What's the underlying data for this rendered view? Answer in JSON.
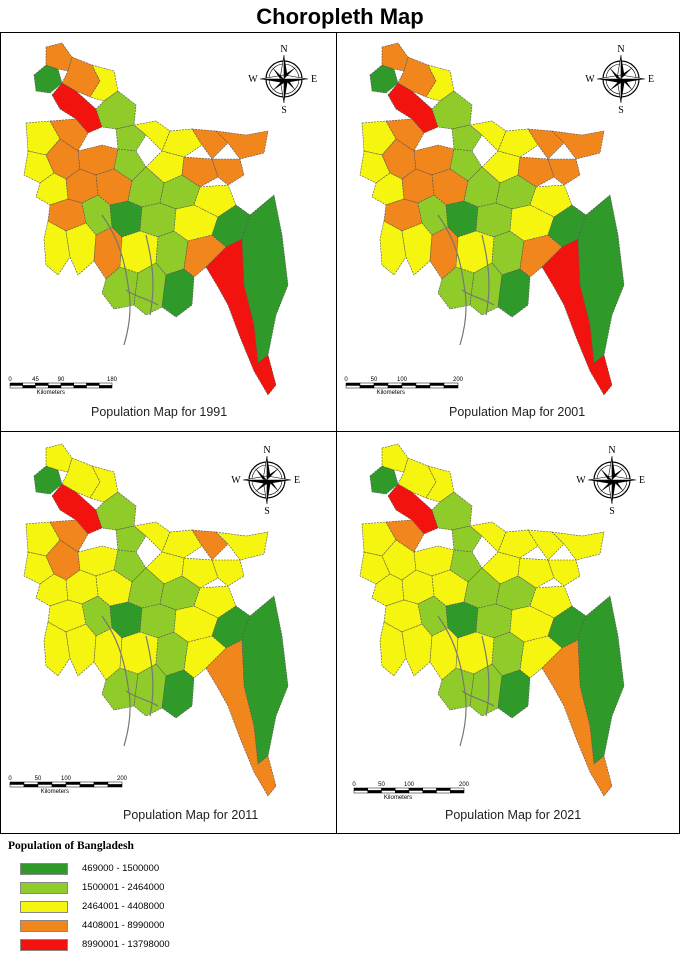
{
  "title": "Choropleth Map",
  "colors": {
    "c1": "#2f9a2a",
    "c2": "#8fcc2a",
    "c3": "#f5f50f",
    "c4": "#f0861c",
    "c5": "#f2130f",
    "border": "#555555"
  },
  "legend": {
    "title": "Population of Bangladesh",
    "classes": [
      {
        "range": "469000 - 1500000",
        "color": "#2f9a2a"
      },
      {
        "range": "1500001 - 2464000",
        "color": "#8fcc2a"
      },
      {
        "range": "2464001 - 4408000",
        "color": "#f5f50f"
      },
      {
        "range": "4408001 - 8990000",
        "color": "#f0861c"
      },
      {
        "range": "8990001 - 13798000",
        "color": "#f2130f"
      }
    ]
  },
  "compass": {
    "n": "N",
    "s": "S",
    "e": "E",
    "w": "W"
  },
  "panels": [
    {
      "caption": "Population Map for 1991",
      "scale_ticks": [
        "0",
        "45",
        "90",
        "180"
      ],
      "scale_unit": "Kilometers",
      "classes": [
        1,
        4,
        5,
        4,
        3,
        2,
        3,
        4,
        2,
        3,
        3,
        4,
        4,
        3,
        4,
        4,
        2,
        3,
        4,
        4,
        3,
        4,
        4,
        2,
        2,
        3,
        4,
        2,
        1,
        2,
        3,
        3,
        4,
        3,
        2,
        2,
        2,
        3,
        1,
        1,
        5,
        4,
        1
      ]
    },
    {
      "caption": "Population Map for 2001",
      "scale_ticks": [
        "0",
        "50",
        "100",
        "200"
      ],
      "scale_unit": "Kilometers",
      "classes": [
        1,
        4,
        5,
        4,
        3,
        2,
        3,
        4,
        2,
        3,
        3,
        4,
        4,
        3,
        4,
        4,
        2,
        3,
        4,
        4,
        3,
        4,
        4,
        2,
        2,
        3,
        4,
        2,
        1,
        2,
        3,
        3,
        4,
        3,
        2,
        2,
        2,
        3,
        1,
        1,
        5,
        4,
        1
      ]
    },
    {
      "caption": "Population Map for 2011",
      "scale_ticks": [
        "0",
        "50",
        "100",
        "200"
      ],
      "scale_unit": "Kilometers",
      "classes": [
        1,
        3,
        5,
        3,
        3,
        2,
        3,
        4,
        2,
        3,
        3,
        4,
        3,
        3,
        4,
        3,
        2,
        3,
        3,
        3,
        3,
        3,
        3,
        2,
        2,
        3,
        3,
        2,
        1,
        2,
        3,
        3,
        3,
        3,
        2,
        2,
        2,
        3,
        1,
        1,
        4,
        3,
        1
      ]
    },
    {
      "caption": "Population Map for 2021",
      "scale_ticks": [
        "0",
        "50",
        "100",
        "200"
      ],
      "scale_unit": "Kilometers",
      "classes": [
        1,
        3,
        5,
        3,
        3,
        2,
        3,
        4,
        2,
        3,
        3,
        3,
        3,
        3,
        3,
        3,
        2,
        3,
        3,
        3,
        3,
        3,
        3,
        2,
        2,
        3,
        3,
        2,
        1,
        2,
        3,
        3,
        3,
        3,
        2,
        2,
        2,
        3,
        1,
        1,
        4,
        3,
        1
      ]
    }
  ]
}
